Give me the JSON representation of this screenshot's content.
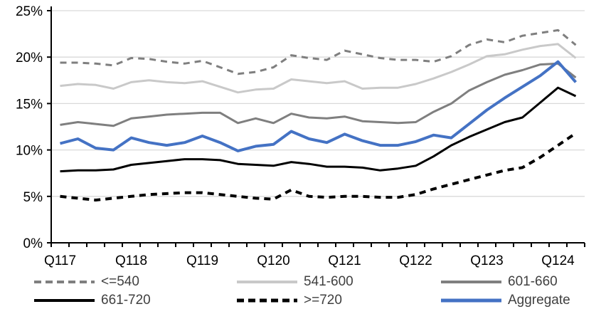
{
  "chart_data": {
    "type": "line",
    "title": "",
    "xlabel": "",
    "ylabel": "",
    "ylim": [
      0,
      25
    ],
    "y_tick_step": 5,
    "y_tick_labels": [
      "0%",
      "5%",
      "10%",
      "15%",
      "20%",
      "25%"
    ],
    "x_tick_labels": [
      "Q117",
      "Q118",
      "Q119",
      "Q120",
      "Q121",
      "Q122",
      "Q123",
      "Q124"
    ],
    "x_tick_step": 4,
    "grid": "horizontal",
    "legend_position": "bottom",
    "gridline_color": "#d9d9d9",
    "axis_color": "#000000",
    "categories": [
      "Q117",
      "Q217",
      "Q317",
      "Q417",
      "Q118",
      "Q218",
      "Q318",
      "Q418",
      "Q119",
      "Q219",
      "Q319",
      "Q419",
      "Q120",
      "Q220",
      "Q320",
      "Q420",
      "Q121",
      "Q221",
      "Q321",
      "Q421",
      "Q122",
      "Q222",
      "Q322",
      "Q422",
      "Q123",
      "Q223",
      "Q323",
      "Q423",
      "Q124",
      "Q224"
    ],
    "series": [
      {
        "name": "<=540",
        "color": "#7f7f7f",
        "dashed": true,
        "width": 3,
        "values": [
          19.4,
          19.4,
          19.3,
          19.1,
          19.9,
          19.8,
          19.5,
          19.3,
          19.6,
          18.9,
          18.2,
          18.4,
          18.9,
          20.2,
          19.9,
          19.7,
          20.7,
          20.3,
          19.9,
          19.7,
          19.7,
          19.5,
          20.1,
          21.3,
          21.9,
          21.6,
          22.3,
          22.6,
          22.9,
          21.3
        ]
      },
      {
        "name": "541-600",
        "color": "#c9c9c9",
        "dashed": false,
        "width": 3,
        "values": [
          16.9,
          17.1,
          17.0,
          16.6,
          17.3,
          17.5,
          17.3,
          17.2,
          17.4,
          16.8,
          16.2,
          16.5,
          16.6,
          17.6,
          17.4,
          17.2,
          17.4,
          16.6,
          16.7,
          16.7,
          17.1,
          17.7,
          18.4,
          19.2,
          20.1,
          20.3,
          20.8,
          21.2,
          21.4,
          19.9
        ]
      },
      {
        "name": "601-660",
        "color": "#7f7f7f",
        "dashed": false,
        "width": 3,
        "values": [
          12.7,
          13.0,
          12.8,
          12.6,
          13.4,
          13.6,
          13.8,
          13.9,
          14.0,
          14.0,
          12.9,
          13.4,
          12.9,
          13.9,
          13.5,
          13.4,
          13.6,
          13.1,
          13.0,
          12.9,
          13.0,
          14.1,
          15.0,
          16.4,
          17.3,
          18.1,
          18.6,
          19.2,
          19.3,
          17.8
        ]
      },
      {
        "name": "661-720",
        "color": "#000000",
        "dashed": false,
        "width": 3,
        "values": [
          7.7,
          7.8,
          7.8,
          7.9,
          8.4,
          8.6,
          8.8,
          9.0,
          9.0,
          8.9,
          8.5,
          8.4,
          8.3,
          8.7,
          8.5,
          8.2,
          8.2,
          8.1,
          7.8,
          8.0,
          8.3,
          9.3,
          10.5,
          11.4,
          12.2,
          13.0,
          13.5,
          15.1,
          16.7,
          15.8
        ]
      },
      {
        "name": ">=720",
        "color": "#000000",
        "dashed": true,
        "width": 4,
        "values": [
          5.0,
          4.8,
          4.6,
          4.8,
          5.0,
          5.2,
          5.3,
          5.4,
          5.4,
          5.2,
          5.0,
          4.8,
          4.7,
          5.7,
          5.0,
          4.9,
          5.0,
          5.0,
          4.9,
          4.9,
          5.2,
          5.8,
          6.3,
          6.8,
          7.3,
          7.8,
          8.1,
          9.2,
          10.5,
          11.8
        ]
      },
      {
        "name": "Aggregate",
        "color": "#4472c4",
        "dashed": false,
        "width": 4,
        "values": [
          10.7,
          11.2,
          10.2,
          10.0,
          11.3,
          10.8,
          10.5,
          10.8,
          11.5,
          10.8,
          9.9,
          10.4,
          10.6,
          12.0,
          11.2,
          10.8,
          11.7,
          11.0,
          10.5,
          10.5,
          10.9,
          11.6,
          11.3,
          12.8,
          14.3,
          15.6,
          16.8,
          18.0,
          19.5,
          17.3
        ]
      }
    ]
  }
}
